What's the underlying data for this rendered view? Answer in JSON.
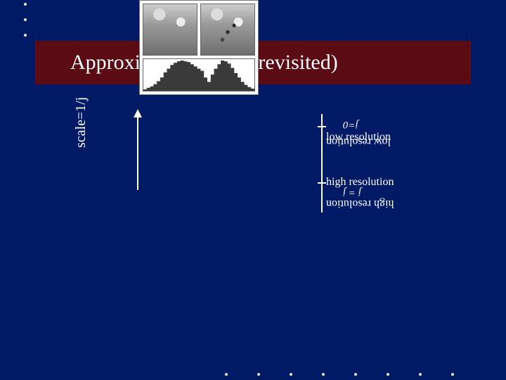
{
  "colors": {
    "slide_bg": "#001a66",
    "title_band_bg": "#5a0b14",
    "title_text": "#ffffff",
    "body_text": "#ffffff",
    "bullet": "#e6e6cc",
    "arrow": "#ffffff",
    "tick": "#ffffff"
  },
  "title": {
    "text": "Approximation-trees (revisited)",
    "fontsize": 30
  },
  "scale_axis": {
    "label": "scale=1/j",
    "fontsize": 20
  },
  "resolution_axis": {
    "low": {
      "label": "low resolution",
      "sub": "j=0"
    },
    "high": {
      "label": "high resolution",
      "sub": "j = j"
    },
    "fontsize": 16,
    "sub_fontsize": 15
  },
  "histogram": {
    "bins": [
      2,
      4,
      6,
      9,
      13,
      18,
      25,
      30,
      35,
      38,
      40,
      41,
      40,
      39,
      36,
      33,
      30,
      27,
      18,
      12,
      22,
      30,
      36,
      41,
      40,
      37,
      31,
      24,
      18,
      12,
      8,
      5,
      3
    ],
    "fill": "#3a3a3a",
    "bg": "#ffffff",
    "border": "#666666"
  }
}
